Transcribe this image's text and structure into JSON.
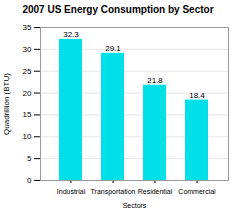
{
  "chart_data": {
    "type": "bar",
    "title": "2007 US Energy Consumption by Sector",
    "categories": [
      "Industrial",
      "Transportation",
      "Residential",
      "Commercial"
    ],
    "values": [
      32.3,
      29.1,
      21.8,
      18.4
    ],
    "color": "#00e0e8",
    "xlabel": "Sectors",
    "ylabel": "Quadrillion (BTU)",
    "ylim": [
      0,
      35
    ],
    "yticks": [
      0,
      5,
      10,
      15,
      20,
      25,
      30,
      35
    ],
    "grid": true,
    "data_labels": true
  }
}
